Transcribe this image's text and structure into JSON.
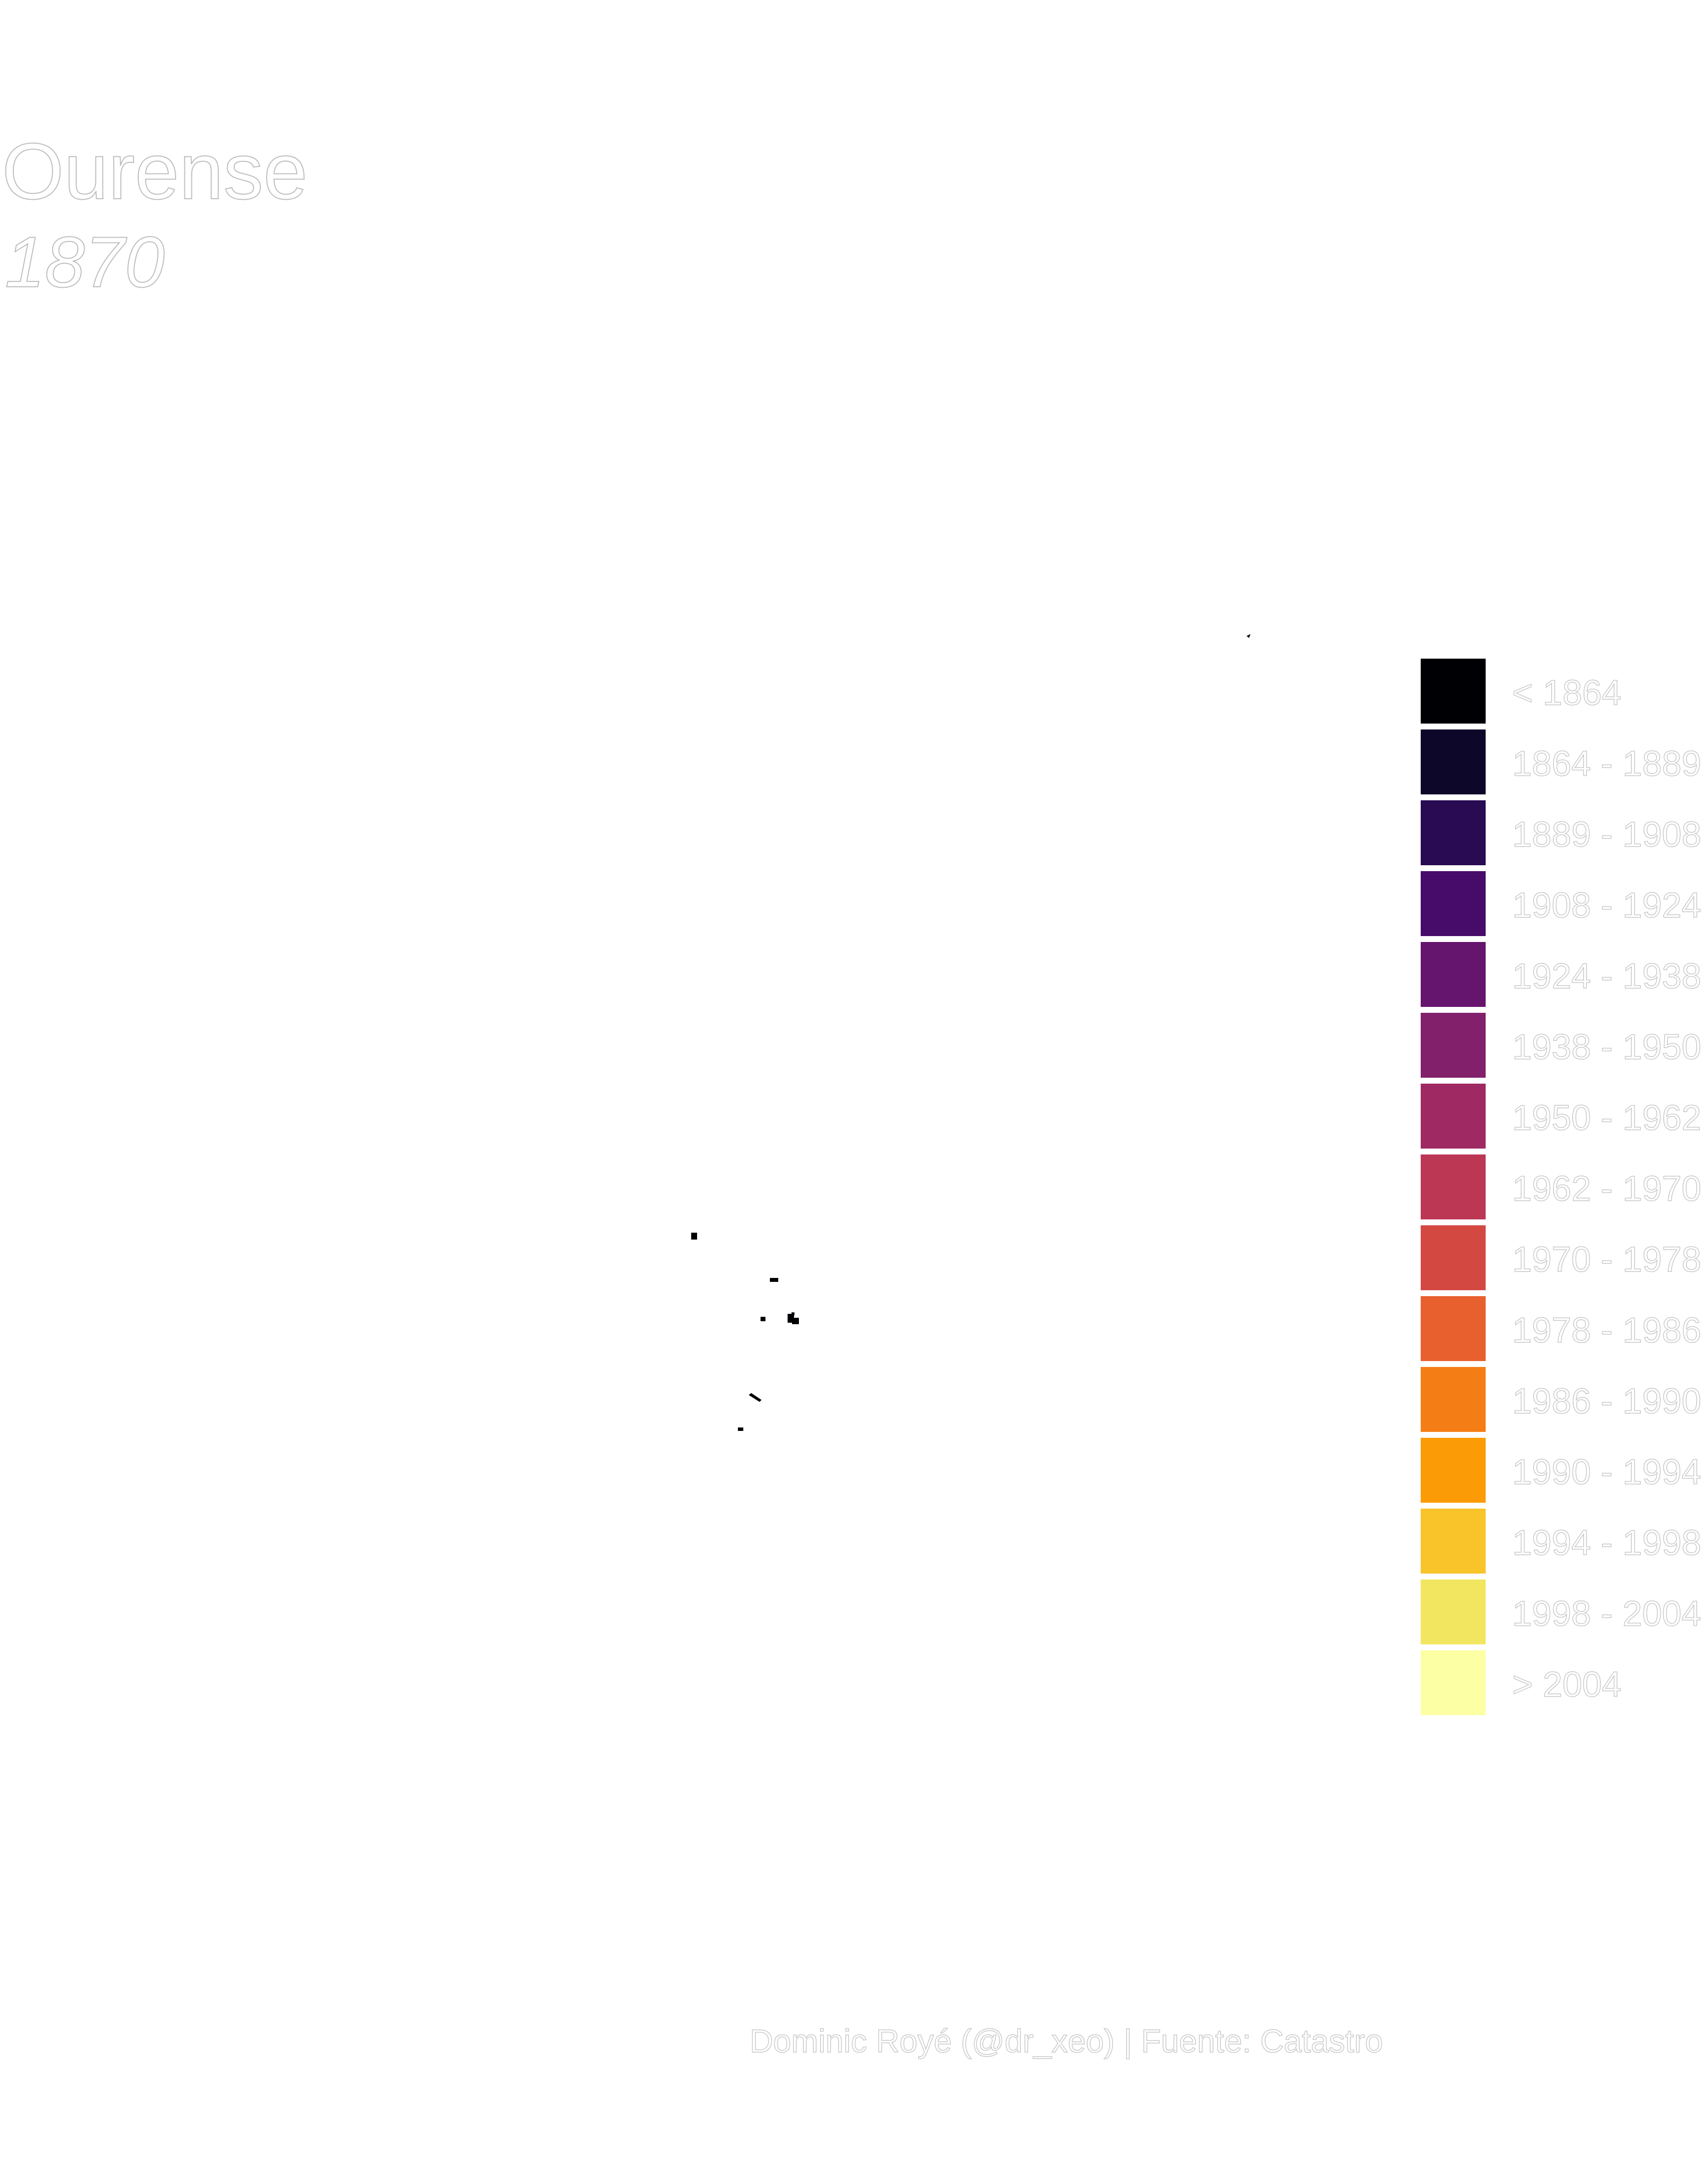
{
  "title": "Ourense",
  "subtitle": "1870",
  "caption": "Dominic Royé (@dr_xeo) | Fuente: Catastro",
  "legend": {
    "items": [
      {
        "label": "< 1864",
        "color": "#000004"
      },
      {
        "label": "1864 - 1889",
        "color": "#0d0829"
      },
      {
        "label": "1889 - 1908",
        "color": "#280b53"
      },
      {
        "label": "1908 - 1924",
        "color": "#470b6a"
      },
      {
        "label": "1924 - 1938",
        "color": "#65156e"
      },
      {
        "label": "1938 - 1950",
        "color": "#82206c"
      },
      {
        "label": "1950 - 1962",
        "color": "#9f2a63"
      },
      {
        "label": "1962 - 1970",
        "color": "#bc3754"
      },
      {
        "label": "1970 - 1978",
        "color": "#d44842"
      },
      {
        "label": "1978 - 1986",
        "color": "#e8602d"
      },
      {
        "label": "1986 - 1990",
        "color": "#f57d15"
      },
      {
        "label": "1990 - 1994",
        "color": "#fb9b06"
      },
      {
        "label": "1994 - 1998",
        "color": "#f9c32a"
      },
      {
        "label": "1998 - 2004",
        "color": "#f2e660"
      },
      {
        "label": "> 2004",
        "color": "#fcffa4"
      }
    ]
  },
  "map": {
    "building_color": "#000004",
    "buildings": [
      {
        "name": "building-north"
      },
      {
        "name": "building-1"
      },
      {
        "name": "building-2"
      },
      {
        "name": "building-3"
      },
      {
        "name": "building-4"
      },
      {
        "name": "building-5"
      },
      {
        "name": "building-6"
      },
      {
        "name": "building-7"
      },
      {
        "name": "building-8"
      }
    ]
  }
}
